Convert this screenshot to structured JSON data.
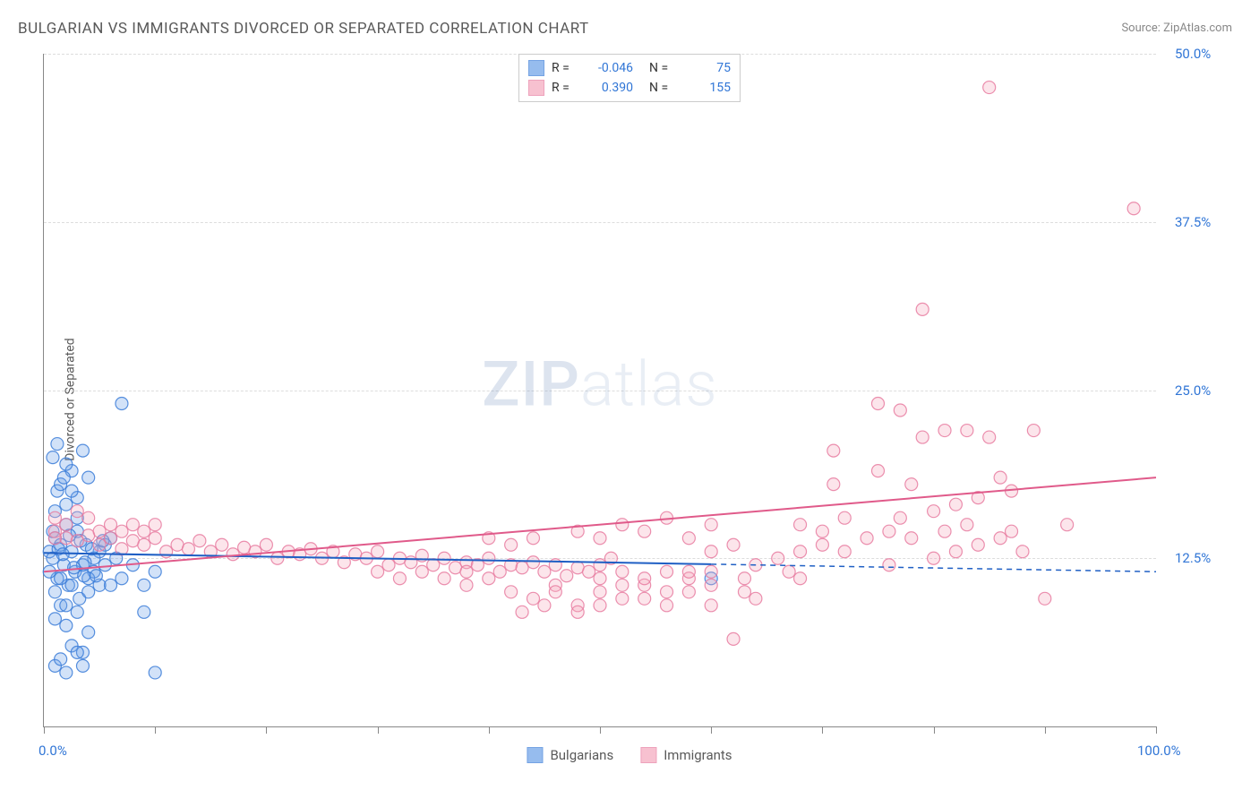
{
  "title": "BULGARIAN VS IMMIGRANTS DIVORCED OR SEPARATED CORRELATION CHART",
  "source_label": "Source:",
  "source_name": "ZipAtlas.com",
  "y_axis_label": "Divorced or Separated",
  "watermark_bold": "ZIP",
  "watermark_light": "atlas",
  "chart": {
    "type": "scatter",
    "background_color": "#ffffff",
    "grid_color": "#dddddd",
    "xlim": [
      0,
      100
    ],
    "ylim": [
      0,
      50
    ],
    "x_tick_positions": [
      0,
      10,
      20,
      30,
      40,
      50,
      60,
      70,
      80,
      90,
      100
    ],
    "x_tick_labels": {
      "0": "0.0%",
      "100": "100.0%"
    },
    "y_tick_positions": [
      12.5,
      25.0,
      37.5,
      50.0
    ],
    "y_tick_labels": [
      "12.5%",
      "25.0%",
      "37.5%",
      "50.0%"
    ],
    "marker_radius": 7,
    "marker_fill_opacity": 0.3,
    "marker_stroke_opacity": 0.85,
    "marker_stroke_width": 1.2,
    "series": [
      {
        "id": "bulgarians",
        "label": "Bulgarians",
        "color": "#6aa0e8",
        "stroke": "#3b7dd8",
        "line_color": "#1f5fc4",
        "R": "-0.046",
        "N": "75",
        "trend": {
          "y_at_x0": 12.9,
          "y_at_x100": 11.5,
          "x_solid_end": 60,
          "dashed_after": true
        },
        "points": [
          [
            0.5,
            13.0
          ],
          [
            0.8,
            12.5
          ],
          [
            1.0,
            14.0
          ],
          [
            1.2,
            11.0
          ],
          [
            1.5,
            13.5
          ],
          [
            1.8,
            12.0
          ],
          [
            2.0,
            15.0
          ],
          [
            2.2,
            10.5
          ],
          [
            2.5,
            13.0
          ],
          [
            2.8,
            11.5
          ],
          [
            3.0,
            14.5
          ],
          [
            3.2,
            9.5
          ],
          [
            3.5,
            12.0
          ],
          [
            3.8,
            13.5
          ],
          [
            4.0,
            10.0
          ],
          [
            4.5,
            11.5
          ],
          [
            5.0,
            13.0
          ],
          [
            5.5,
            12.0
          ],
          [
            6.0,
            14.0
          ],
          [
            1.0,
            8.0
          ],
          [
            1.5,
            9.0
          ],
          [
            2.0,
            7.5
          ],
          [
            2.5,
            6.0
          ],
          [
            3.0,
            8.5
          ],
          [
            3.5,
            5.5
          ],
          [
            4.0,
            7.0
          ],
          [
            1.0,
            10.0
          ],
          [
            1.5,
            11.0
          ],
          [
            2.0,
            9.0
          ],
          [
            2.5,
            10.5
          ],
          [
            1.0,
            16.0
          ],
          [
            1.2,
            17.5
          ],
          [
            1.5,
            18.0
          ],
          [
            2.0,
            16.5
          ],
          [
            2.5,
            19.0
          ],
          [
            3.0,
            17.0
          ],
          [
            3.5,
            20.5
          ],
          [
            4.0,
            18.5
          ],
          [
            2.0,
            19.5
          ],
          [
            2.5,
            17.5
          ],
          [
            1.0,
            4.5
          ],
          [
            1.5,
            5.0
          ],
          [
            2.0,
            4.0
          ],
          [
            10.0,
            4.0
          ],
          [
            3.0,
            5.5
          ],
          [
            3.5,
            4.5
          ],
          [
            0.8,
            20.0
          ],
          [
            1.2,
            21.0
          ],
          [
            7.0,
            24.0
          ],
          [
            1.8,
            18.5
          ],
          [
            4.0,
            11.0
          ],
          [
            4.5,
            12.5
          ],
          [
            5.0,
            10.5
          ],
          [
            5.5,
            13.5
          ],
          [
            6.5,
            12.5
          ],
          [
            7.0,
            11.0
          ],
          [
            8.0,
            12.0
          ],
          [
            9.0,
            10.5
          ],
          [
            10.0,
            11.5
          ],
          [
            60.0,
            11.0
          ],
          [
            3.0,
            15.5
          ],
          [
            6.0,
            10.5
          ],
          [
            0.5,
            11.5
          ],
          [
            0.8,
            14.5
          ],
          [
            1.3,
            13.2
          ],
          [
            1.7,
            12.8
          ],
          [
            2.3,
            14.2
          ],
          [
            2.7,
            11.8
          ],
          [
            3.3,
            13.8
          ],
          [
            3.7,
            12.2
          ],
          [
            4.3,
            13.2
          ],
          [
            4.7,
            11.2
          ],
          [
            9.0,
            8.5
          ],
          [
            5.3,
            13.8
          ],
          [
            3.6,
            11.2
          ]
        ]
      },
      {
        "id": "immigrants",
        "label": "Immigrants",
        "color": "#f5a8bd",
        "stroke": "#e87ba0",
        "line_color": "#e05a8a",
        "R": "0.390",
        "N": "155",
        "trend": {
          "y_at_x0": 11.5,
          "y_at_x100": 18.5,
          "x_solid_end": 100,
          "dashed_after": false
        },
        "points": [
          [
            1,
            14.5
          ],
          [
            2,
            14.0
          ],
          [
            3,
            13.8
          ],
          [
            4,
            14.2
          ],
          [
            5,
            13.5
          ],
          [
            6,
            14.0
          ],
          [
            7,
            13.2
          ],
          [
            8,
            13.8
          ],
          [
            9,
            13.5
          ],
          [
            10,
            14.0
          ],
          [
            11,
            13.0
          ],
          [
            12,
            13.5
          ],
          [
            13,
            13.2
          ],
          [
            14,
            13.8
          ],
          [
            15,
            13.0
          ],
          [
            16,
            13.5
          ],
          [
            17,
            12.8
          ],
          [
            18,
            13.3
          ],
          [
            19,
            13.0
          ],
          [
            20,
            13.5
          ],
          [
            21,
            12.5
          ],
          [
            22,
            13.0
          ],
          [
            23,
            12.8
          ],
          [
            24,
            13.2
          ],
          [
            25,
            12.5
          ],
          [
            26,
            13.0
          ],
          [
            27,
            12.2
          ],
          [
            28,
            12.8
          ],
          [
            29,
            12.5
          ],
          [
            30,
            13.0
          ],
          [
            31,
            12.0
          ],
          [
            32,
            12.5
          ],
          [
            33,
            12.2
          ],
          [
            34,
            12.7
          ],
          [
            35,
            12.0
          ],
          [
            36,
            12.5
          ],
          [
            37,
            11.8
          ],
          [
            38,
            12.2
          ],
          [
            39,
            12.0
          ],
          [
            40,
            12.5
          ],
          [
            41,
            11.5
          ],
          [
            42,
            12.0
          ],
          [
            43,
            11.8
          ],
          [
            44,
            12.2
          ],
          [
            45,
            11.5
          ],
          [
            46,
            12.0
          ],
          [
            47,
            11.2
          ],
          [
            48,
            11.8
          ],
          [
            49,
            11.5
          ],
          [
            50,
            12.0
          ],
          [
            38,
            10.5
          ],
          [
            40,
            11.0
          ],
          [
            42,
            10.0
          ],
          [
            44,
            9.5
          ],
          [
            46,
            10.5
          ],
          [
            48,
            9.0
          ],
          [
            50,
            10.0
          ],
          [
            52,
            9.5
          ],
          [
            54,
            10.5
          ],
          [
            56,
            9.0
          ],
          [
            50,
            11.0
          ],
          [
            52,
            11.5
          ],
          [
            54,
            11.0
          ],
          [
            56,
            11.5
          ],
          [
            58,
            11.0
          ],
          [
            60,
            11.5
          ],
          [
            58,
            10.0
          ],
          [
            60,
            10.5
          ],
          [
            62,
            6.5
          ],
          [
            43,
            8.5
          ],
          [
            48,
            14.5
          ],
          [
            50,
            14.0
          ],
          [
            52,
            15.0
          ],
          [
            54,
            14.5
          ],
          [
            56,
            15.5
          ],
          [
            58,
            14.0
          ],
          [
            60,
            15.0
          ],
          [
            63,
            11.0
          ],
          [
            63,
            10.0
          ],
          [
            1,
            15.5
          ],
          [
            60,
            13.0
          ],
          [
            62,
            13.5
          ],
          [
            64,
            12.0
          ],
          [
            66,
            12.5
          ],
          [
            68,
            13.0
          ],
          [
            70,
            13.5
          ],
          [
            67,
            11.5
          ],
          [
            68,
            15.0
          ],
          [
            70,
            14.5
          ],
          [
            72,
            15.5
          ],
          [
            71,
            20.5
          ],
          [
            71,
            18.0
          ],
          [
            72,
            13.0
          ],
          [
            74,
            14.0
          ],
          [
            75,
            24.0
          ],
          [
            75,
            19.0
          ],
          [
            76,
            14.5
          ],
          [
            76,
            12.0
          ],
          [
            77,
            23.5
          ],
          [
            77,
            15.5
          ],
          [
            78,
            18.0
          ],
          [
            78,
            14.0
          ],
          [
            79,
            21.5
          ],
          [
            79,
            31.0
          ],
          [
            80,
            16.0
          ],
          [
            80,
            12.5
          ],
          [
            81,
            22.0
          ],
          [
            81,
            14.5
          ],
          [
            82,
            16.5
          ],
          [
            82,
            13.0
          ],
          [
            83,
            22.0
          ],
          [
            83,
            15.0
          ],
          [
            84,
            17.0
          ],
          [
            84,
            13.5
          ],
          [
            85,
            21.5
          ],
          [
            85,
            47.5
          ],
          [
            86,
            18.5
          ],
          [
            86,
            14.0
          ],
          [
            87,
            17.5
          ],
          [
            87,
            14.5
          ],
          [
            88,
            13.0
          ],
          [
            89,
            22.0
          ],
          [
            90,
            9.5
          ],
          [
            92,
            15.0
          ],
          [
            98,
            38.5
          ],
          [
            3,
            16.0
          ],
          [
            1,
            14.0
          ],
          [
            2,
            15.0
          ],
          [
            4,
            15.5
          ],
          [
            5,
            14.5
          ],
          [
            6,
            15.0
          ],
          [
            7,
            14.5
          ],
          [
            8,
            15.0
          ],
          [
            9,
            14.5
          ],
          [
            10,
            15.0
          ],
          [
            30,
            11.5
          ],
          [
            32,
            11.0
          ],
          [
            34,
            11.5
          ],
          [
            36,
            11.0
          ],
          [
            38,
            11.5
          ],
          [
            40,
            14.0
          ],
          [
            42,
            13.5
          ],
          [
            44,
            14.0
          ],
          [
            46,
            10.0
          ],
          [
            48,
            8.5
          ],
          [
            50,
            9.0
          ],
          [
            52,
            10.5
          ],
          [
            54,
            9.5
          ],
          [
            56,
            10.0
          ],
          [
            58,
            11.5
          ],
          [
            60,
            9.0
          ],
          [
            51,
            12.5
          ],
          [
            64,
            9.5
          ],
          [
            45,
            9.0
          ],
          [
            68,
            11.0
          ]
        ]
      }
    ]
  },
  "legend_top": {
    "R_label": "R =",
    "N_label": "N ="
  },
  "legend_bottom": {
    "items": [
      "Bulgarians",
      "Immigrants"
    ]
  }
}
